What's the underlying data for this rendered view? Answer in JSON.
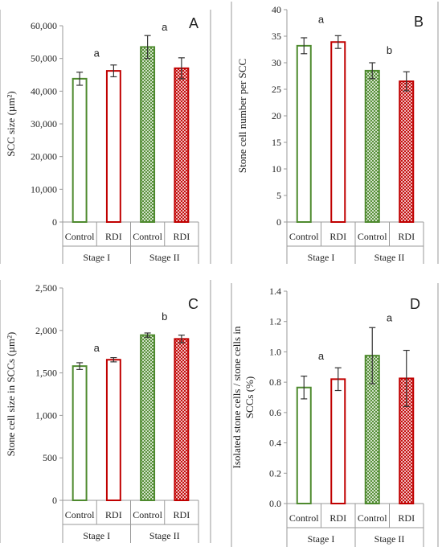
{
  "colors": {
    "control": "#4e8a2e",
    "rdi": "#c00000",
    "frame": "#9a9a9a",
    "text": "#222222"
  },
  "chart_data": [
    {
      "type": "bar",
      "panel": "A",
      "ylabel": "SCC  size  (µm²)",
      "ylim": [
        0,
        60000
      ],
      "yticks": [
        0,
        10000,
        20000,
        30000,
        40000,
        50000,
        60000
      ],
      "ytick_labels": [
        "0",
        "10,000",
        "20,000",
        "30,000",
        "40,000",
        "50,000",
        "60,000"
      ],
      "categories": [
        "Control",
        "RDI",
        "Control",
        "RDI"
      ],
      "groups": [
        "Stage I",
        "Stage II"
      ],
      "values": [
        43800,
        46200,
        53500,
        47000
      ],
      "errors": [
        2000,
        1800,
        3500,
        3200
      ],
      "patterns": [
        "open",
        "open",
        "hatched",
        "hatched"
      ],
      "annotations": [
        {
          "text": "a",
          "between": [
            0,
            1
          ],
          "y": 50500
        },
        {
          "text": "a",
          "between": [
            2,
            3
          ],
          "y": 58500
        }
      ]
    },
    {
      "type": "bar",
      "panel": "B",
      "ylabel": "Stone cell number per SCC",
      "ylim": [
        0,
        40
      ],
      "yticks": [
        0,
        5,
        10,
        15,
        20,
        25,
        30,
        35,
        40
      ],
      "ytick_labels": [
        "0",
        "5",
        "10",
        "15",
        "20",
        "25",
        "30",
        "35",
        "40"
      ],
      "categories": [
        "Control",
        "RDI",
        "Control",
        "RDI"
      ],
      "groups": [
        "Stage I",
        "Stage II"
      ],
      "values": [
        33.2,
        33.9,
        28.5,
        26.5
      ],
      "errors": [
        1.5,
        1.2,
        1.5,
        1.8
      ],
      "patterns": [
        "open",
        "open",
        "hatched",
        "hatched"
      ],
      "annotations": [
        {
          "text": "a",
          "between": [
            0,
            1
          ],
          "y": 37.5
        },
        {
          "text": "b",
          "between": [
            2,
            3
          ],
          "y": 31.7
        }
      ]
    },
    {
      "type": "bar",
      "panel": "C",
      "ylabel": "Stone cell size in SCCs (µm²)",
      "ylim": [
        0,
        2500
      ],
      "yticks": [
        0,
        500,
        1000,
        1500,
        2000,
        2500
      ],
      "ytick_labels": [
        "0",
        "500",
        "1,000",
        "1,500",
        "2,000",
        "2,500"
      ],
      "categories": [
        "Control",
        "RDI",
        "Control",
        "RDI"
      ],
      "groups": [
        "Stage I",
        "Stage II"
      ],
      "values": [
        1580,
        1655,
        1945,
        1900
      ],
      "errors": [
        40,
        25,
        25,
        45
      ],
      "patterns": [
        "open",
        "open",
        "hatched",
        "hatched"
      ],
      "annotations": [
        {
          "text": "a",
          "between": [
            0,
            1
          ],
          "y": 1750
        },
        {
          "text": "b",
          "between": [
            2,
            3
          ],
          "y": 2120
        }
      ]
    },
    {
      "type": "bar",
      "panel": "D",
      "ylabel": "Isolated stone cells / stone cells in SCCs (%)",
      "ylabel_lines": [
        "Isolated stone cells / stone cells in",
        "SCCs (%)"
      ],
      "ylim": [
        0,
        1.4
      ],
      "yticks": [
        0,
        0.2,
        0.4,
        0.6,
        0.8,
        1.0,
        1.2,
        1.4
      ],
      "ytick_labels": [
        "0.0",
        "0.2",
        "0.4",
        "0.6",
        "0.8",
        "1.0",
        "1.2",
        "1.4"
      ],
      "categories": [
        "Control",
        "RDI",
        "Control",
        "RDI"
      ],
      "groups": [
        "Stage I",
        "Stage II"
      ],
      "values": [
        0.765,
        0.82,
        0.975,
        0.825
      ],
      "errors": [
        0.075,
        0.075,
        0.185,
        0.185
      ],
      "patterns": [
        "open",
        "open",
        "hatched",
        "hatched"
      ],
      "annotations": [
        {
          "text": "a",
          "between": [
            0,
            1
          ],
          "y": 0.95
        },
        {
          "text": "a",
          "between": [
            2,
            3
          ],
          "y": 1.2
        }
      ]
    }
  ]
}
